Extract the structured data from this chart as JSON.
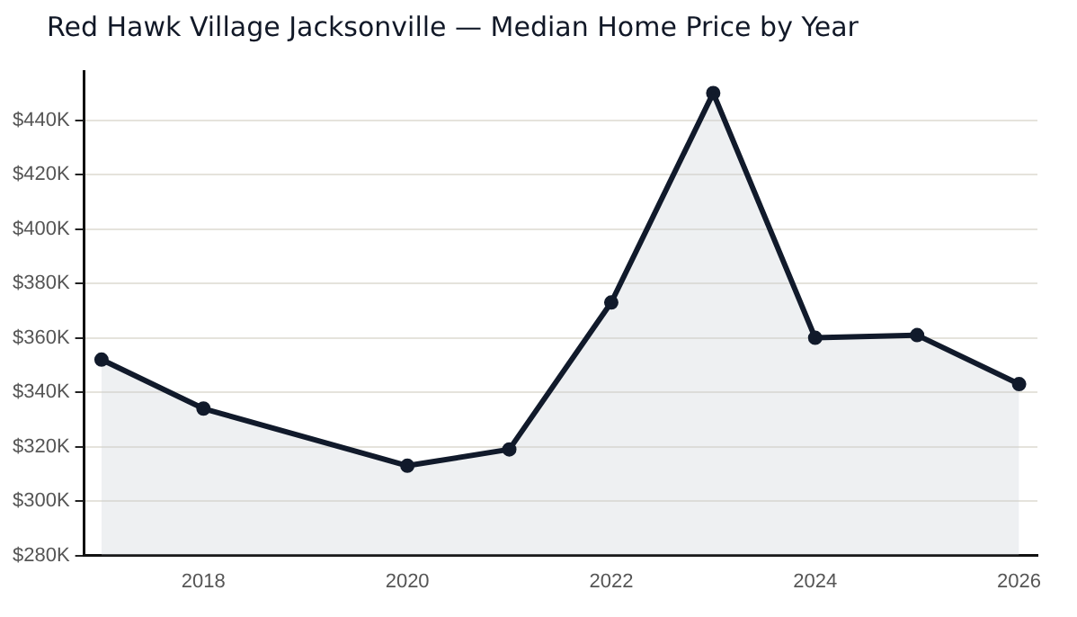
{
  "chart_data": {
    "type": "area",
    "title": "Red Hawk Village Jacksonville — Median Home Price by Year",
    "x": [
      2017,
      2018,
      2020,
      2021,
      2022,
      2023,
      2024,
      2025,
      2026
    ],
    "series": [
      {
        "color": "#111a2b",
        "values": [
          352,
          334,
          313,
          319,
          373,
          450,
          360,
          361,
          343
        ]
      }
    ],
    "xlim": [
      2016.83,
      2026.18
    ],
    "xticks": [
      2018,
      2020,
      2022,
      2024,
      2026
    ],
    "ylim": [
      280,
      458
    ],
    "yticks": [
      {
        "value": 280,
        "label": "$280K"
      },
      {
        "value": 300,
        "label": "$300K"
      },
      {
        "value": 320,
        "label": "$320K"
      },
      {
        "value": 340,
        "label": "$340K"
      },
      {
        "value": 360,
        "label": "$360K"
      },
      {
        "value": 380,
        "label": "$380K"
      },
      {
        "value": 400,
        "label": "$400K"
      },
      {
        "value": 420,
        "label": "$420K"
      },
      {
        "value": 440,
        "label": "$440K"
      }
    ],
    "grid": "y",
    "legend": false,
    "marker": "circle",
    "line_style": "solid"
  }
}
